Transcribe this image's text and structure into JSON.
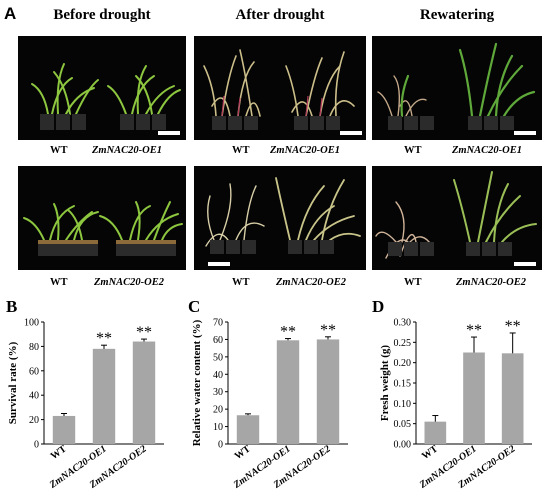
{
  "figure": {
    "panel_a": {
      "letter": "A",
      "columns": [
        "Before drought",
        "After drought",
        "Rewatering"
      ],
      "row1_labels": [
        {
          "wt": "WT",
          "oe": "ZmNAC20-OE1"
        },
        {
          "wt": "WT",
          "oe": "ZmNAC20-OE1"
        },
        {
          "wt": "WT",
          "oe": "ZmNAC20-OE1"
        }
      ],
      "row2_labels": [
        {
          "wt": "WT",
          "oe": "ZmNAC20-OE2"
        },
        {
          "wt": "WT",
          "oe": "ZmNAC20-OE2"
        },
        {
          "wt": "WT",
          "oe": "ZmNAC20-OE2"
        }
      ]
    }
  },
  "chart_data": [
    {
      "letter": "B",
      "type": "bar",
      "categories": [
        "WT",
        "ZmNAC20-OE1",
        "ZmNAC20-OE2"
      ],
      "values": [
        23,
        78,
        84
      ],
      "errors": [
        2,
        3,
        2
      ],
      "significance": [
        "",
        "**",
        "**"
      ],
      "ylabel": "Survival rate (%)",
      "ylim": [
        0,
        100
      ],
      "yticks": [
        "0",
        "20",
        "40",
        "60",
        "80",
        "100"
      ],
      "bar_color": "#a6a6a6"
    },
    {
      "letter": "C",
      "type": "bar",
      "categories": [
        "WT",
        "ZmNAC20-OE1",
        "ZmNAC20-OE2"
      ],
      "values": [
        16.5,
        59.5,
        60
      ],
      "errors": [
        0.8,
        1,
        1.5
      ],
      "significance": [
        "",
        "**",
        "**"
      ],
      "ylabel": "Relative water content (%)",
      "ylim": [
        0,
        70
      ],
      "yticks": [
        "0",
        "10",
        "20",
        "30",
        "40",
        "50",
        "60",
        "70"
      ],
      "bar_color": "#a6a6a6"
    },
    {
      "letter": "D",
      "type": "bar",
      "categories": [
        "WT",
        "ZmNAC20-OE1",
        "ZmNAC20-OE2"
      ],
      "values": [
        0.055,
        0.225,
        0.223
      ],
      "errors": [
        0.015,
        0.038,
        0.05
      ],
      "significance": [
        "",
        "**",
        "**"
      ],
      "ylabel": "Fresh weight (g)",
      "ylim": [
        0,
        0.3
      ],
      "yticks": [
        "0.00",
        "0.05",
        "0.10",
        "0.15",
        "0.20",
        "0.25",
        "0.30"
      ],
      "bar_color": "#a6a6a6"
    }
  ]
}
